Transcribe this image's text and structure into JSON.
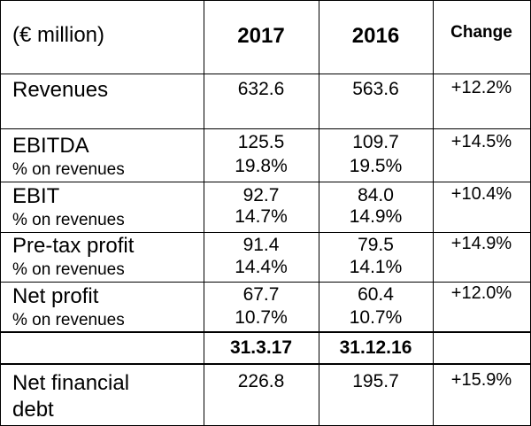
{
  "header": {
    "label": "(€ million)",
    "col_2017": "2017",
    "col_2016": "2016",
    "col_change": "Change"
  },
  "rows": [
    {
      "label": "Revenues",
      "v2017": "632.6",
      "v2016": "563.6",
      "change": "+12.2%"
    },
    {
      "label": "EBITDA",
      "sub": "% on revenues",
      "v2017": "125.5",
      "v2017_sub": "19.8%",
      "v2016": "109.7",
      "v2016_sub": "19.5%",
      "change": "+14.5%"
    },
    {
      "label": "EBIT",
      "sub": "% on revenues",
      "v2017": "92.7",
      "v2017_sub": "14.7%",
      "v2016": "84.0",
      "v2016_sub": "14.9%",
      "change": "+10.4%"
    },
    {
      "label": "Pre-tax profit",
      "sub": "% on revenues",
      "v2017": "91.4",
      "v2017_sub": "14.4%",
      "v2016": "79.5",
      "v2016_sub": "14.1%",
      "change": "+14.9%"
    },
    {
      "label": "Net profit",
      "sub": "% on revenues",
      "v2017": "67.7",
      "v2017_sub": "10.7%",
      "v2016": "60.4",
      "v2016_sub": "10.7%",
      "change": "+12.0%"
    }
  ],
  "dates_row": {
    "d2017": "31.3.17",
    "d2016": "31.12.16"
  },
  "debt_row": {
    "label_line1": "Net financial",
    "label_line2": "debt",
    "v2017": "226.8",
    "v2016": "195.7",
    "change": "+15.9%"
  }
}
